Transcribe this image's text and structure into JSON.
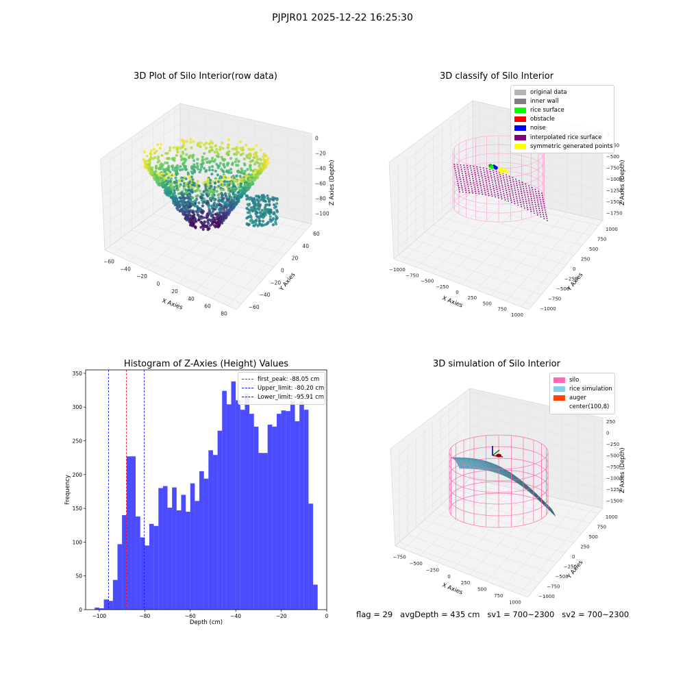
{
  "figure": {
    "suptitle": "PJPJR01 2025-12-22 16:25:30",
    "status": {
      "flag": "flag = 29",
      "avg_depth": "avgDepth = 435 cm",
      "sv1": "sv1 = 700~2300",
      "sv2": "sv2 = 700~2300"
    }
  },
  "chart_data": [
    {
      "type": "scatter",
      "title": "3D Plot of Silo Interior(row data)",
      "xlabel": "X Axies",
      "ylabel": "Y Axies",
      "zlabel": "Z Axies (Depth)",
      "xticks": [
        "−60",
        "−40",
        "−20",
        "0",
        "20",
        "40",
        "60",
        "80"
      ],
      "yticks": [
        "−60",
        "−40",
        "−20",
        "0",
        "20",
        "40",
        "60"
      ],
      "zticks": [
        "0",
        "−20",
        "−40",
        "−60",
        "−80",
        "−100"
      ],
      "xlim": [
        -70,
        85
      ],
      "ylim": [
        -65,
        65
      ],
      "zlim": [
        -105,
        0
      ],
      "colormap": "viridis",
      "grid": true
    },
    {
      "type": "scatter",
      "title": "3D classify of Silo Interior",
      "xlabel": "X Axies",
      "ylabel": "Y Axies",
      "zlabel": "Z Axies (Depth)",
      "xticks": [
        "−1000",
        "−750",
        "−500",
        "−250",
        "0",
        "250",
        "500",
        "750",
        "1000"
      ],
      "yticks": [
        "−1000",
        "−750",
        "−500",
        "−250",
        "0",
        "250",
        "500",
        "750",
        "1000"
      ],
      "zticks": [
        "0",
        "−250",
        "−500",
        "−750",
        "−1000",
        "−1250",
        "−1500",
        "−1750"
      ],
      "legend": [
        {
          "label": "original data",
          "color": "#b3b3b3"
        },
        {
          "label": "inner wall",
          "color": "#808080"
        },
        {
          "label": "rice surface",
          "color": "#00ff00"
        },
        {
          "label": "obstacle",
          "color": "#ff0000"
        },
        {
          "label": "noise",
          "color": "#0000ff"
        },
        {
          "label": "interpolated rice surface",
          "color": "#800080"
        },
        {
          "label": "symmetric generated points",
          "color": "#ffff00"
        }
      ],
      "legend_loc": "top-right",
      "grid": true
    },
    {
      "type": "bar",
      "title": "Histogram of Z-Axies (Height) Values",
      "xlabel": "Depth (cm)",
      "ylabel": "Frequency",
      "xlim": [
        -106,
        0
      ],
      "ylim": [
        0,
        355
      ],
      "xticks": [
        -100,
        -80,
        -60,
        -40,
        -20,
        0
      ],
      "yticks": [
        0,
        50,
        100,
        150,
        200,
        250,
        300,
        350
      ],
      "tick_labels_x": [
        "−100",
        "−80",
        "−60",
        "−40",
        "−20",
        "0"
      ],
      "tick_labels_y": [
        "0",
        "50",
        "100",
        "150",
        "200",
        "250",
        "300",
        "350"
      ],
      "bin_edges": [
        -102,
        -100,
        -98,
        -96,
        -94,
        -92,
        -90,
        -88,
        -86,
        -84,
        -82,
        -80,
        -78,
        -76,
        -74,
        -72,
        -70,
        -68,
        -66,
        -64,
        -62,
        -60,
        -58,
        -56,
        -54,
        -52,
        -50,
        -48,
        -46,
        -44,
        -42,
        -40,
        -38,
        -36,
        -34,
        -32,
        -30,
        -28,
        -26,
        -24,
        -22,
        -20,
        -18,
        -16,
        -14,
        -12,
        -10,
        -8,
        -6,
        -4
      ],
      "values": [
        3,
        2,
        15,
        13,
        44,
        97,
        140,
        227,
        227,
        138,
        107,
        95,
        127,
        124,
        180,
        183,
        151,
        181,
        147,
        170,
        145,
        187,
        161,
        205,
        194,
        236,
        229,
        265,
        324,
        304,
        338,
        310,
        296,
        320,
        290,
        271,
        232,
        232,
        274,
        271,
        290,
        295,
        294,
        309,
        279,
        308,
        296,
        157,
        37
      ],
      "bar_color": "#0000ff",
      "bar_alpha": 0.7,
      "vlines": [
        {
          "label": "first_peak: -88.05 cm",
          "x": -88.05,
          "color": "#ff0000"
        },
        {
          "label": "Upper_limit: -80.20 cm",
          "x": -80.2,
          "color": "#0000ff"
        },
        {
          "label": "Lower_limit: -95.91 cm",
          "x": -95.91,
          "color": "#0000ff"
        }
      ],
      "legend_loc": "top-right"
    },
    {
      "type": "surface",
      "title": "3D simulation of Silo Interior",
      "xlabel": "X Axies",
      "ylabel": "Y Axies",
      "zlabel": "Z Axies (Depth)",
      "xticks": [
        "−750",
        "−500",
        "−250",
        "0",
        "250",
        "500",
        "750",
        "1000"
      ],
      "yticks": [
        "−1000",
        "−750",
        "−500",
        "−250",
        "0",
        "250",
        "500",
        "750",
        "1000"
      ],
      "zticks": [
        "250",
        "0",
        "−250",
        "−500",
        "−750",
        "−1000",
        "−1250",
        "−1500"
      ],
      "legend": [
        {
          "label": "silo",
          "color": "#ff69b4"
        },
        {
          "label": "rice simulation",
          "color": "#87ceeb"
        },
        {
          "label": "auger",
          "color": "#ff4500"
        },
        {
          "label": "center(100,8)",
          "color": "#ffffff"
        }
      ],
      "legend_loc": "top-right",
      "grid": true
    }
  ]
}
